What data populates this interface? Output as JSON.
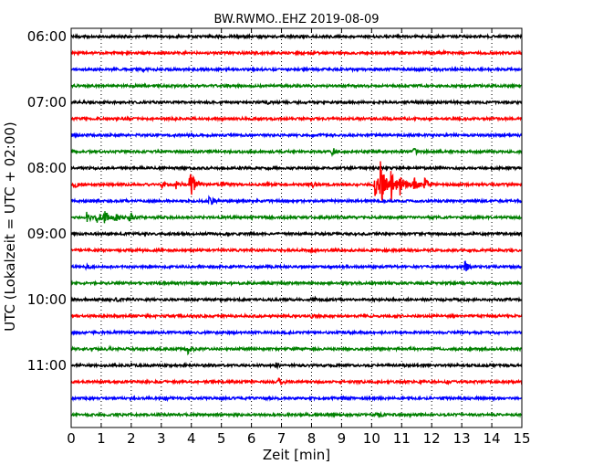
{
  "chart_data": {
    "type": "line",
    "title": "BW.RWMO..EHZ 2019-08-09",
    "xlabel": "Zeit  [min]",
    "ylabel": "UTC (Lokalzeit = UTC + 02:00)",
    "xlim": [
      0,
      15
    ],
    "x_ticks": [
      "0",
      "1",
      "2",
      "3",
      "4",
      "5",
      "6",
      "7",
      "8",
      "9",
      "10",
      "11",
      "12",
      "13",
      "14",
      "15"
    ],
    "y_ticks": [
      "06:00",
      "07:00",
      "08:00",
      "09:00",
      "10:00",
      "11:00"
    ],
    "grid": "vertical dotted",
    "trace_interval_min": 15,
    "traces": [
      {
        "start": "06:00",
        "color": "#000000",
        "events": []
      },
      {
        "start": "06:15",
        "color": "#ff0000",
        "events": [
          {
            "t": 12.4,
            "amp": 1.5
          }
        ]
      },
      {
        "start": "06:30",
        "color": "#0000ff",
        "events": [
          {
            "t": 2.4,
            "amp": 1.5
          },
          {
            "t": 12.2,
            "amp": 2
          }
        ]
      },
      {
        "start": "06:45",
        "color": "#008000",
        "events": []
      },
      {
        "start": "07:00",
        "color": "#000000",
        "events": [
          {
            "t": 6.5,
            "amp": 1.5
          }
        ]
      },
      {
        "start": "07:15",
        "color": "#ff0000",
        "events": []
      },
      {
        "start": "07:30",
        "color": "#0000ff",
        "events": []
      },
      {
        "start": "07:45",
        "color": "#008000",
        "events": [
          {
            "t": 8.7,
            "amp": 4
          },
          {
            "t": 11.4,
            "amp": 3
          }
        ]
      },
      {
        "start": "08:00",
        "color": "#000000",
        "events": []
      },
      {
        "start": "08:15",
        "color": "#ff0000",
        "events": [
          {
            "t": 0.1,
            "amp": 4
          },
          {
            "t": 3.0,
            "amp": 3
          },
          {
            "t": 3.5,
            "amp": 5
          },
          {
            "t": 3.95,
            "amp": 20
          },
          {
            "t": 5.0,
            "amp": 3
          },
          {
            "t": 6.5,
            "amp": 2
          },
          {
            "t": 8.0,
            "amp": 3
          },
          {
            "t": 10.1,
            "amp": 16
          },
          {
            "t": 10.3,
            "amp": 40
          },
          {
            "t": 10.65,
            "amp": 22
          },
          {
            "t": 10.95,
            "amp": 16
          },
          {
            "t": 11.4,
            "amp": 12
          },
          {
            "t": 11.75,
            "amp": 7
          }
        ]
      },
      {
        "start": "08:30",
        "color": "#0000ff",
        "events": [
          {
            "t": 4.6,
            "amp": 6
          }
        ]
      },
      {
        "start": "08:45",
        "color": "#008000",
        "events": [
          {
            "t": 0.5,
            "amp": 8
          },
          {
            "t": 0.85,
            "amp": 6
          },
          {
            "t": 1.1,
            "amp": 7
          },
          {
            "t": 1.45,
            "amp": 6
          },
          {
            "t": 1.95,
            "amp": 7
          }
        ]
      },
      {
        "start": "09:00",
        "color": "#000000",
        "events": []
      },
      {
        "start": "09:15",
        "color": "#ff0000",
        "events": [
          {
            "t": 8.0,
            "amp": 2
          }
        ]
      },
      {
        "start": "09:30",
        "color": "#0000ff",
        "events": [
          {
            "t": 0.5,
            "amp": 2
          },
          {
            "t": 13.1,
            "amp": 6
          }
        ]
      },
      {
        "start": "09:45",
        "color": "#008000",
        "events": []
      },
      {
        "start": "10:00",
        "color": "#000000",
        "events": [
          {
            "t": 1.5,
            "amp": 1.5
          },
          {
            "t": 8.1,
            "amp": 1.5
          }
        ]
      },
      {
        "start": "10:15",
        "color": "#ff0000",
        "events": [
          {
            "t": 8.0,
            "amp": 1.5
          }
        ]
      },
      {
        "start": "10:30",
        "color": "#0000ff",
        "events": []
      },
      {
        "start": "10:45",
        "color": "#008000",
        "events": [
          {
            "t": 1.2,
            "amp": 1.5
          },
          {
            "t": 3.85,
            "amp": 6
          }
        ]
      },
      {
        "start": "11:00",
        "color": "#000000",
        "events": [
          {
            "t": 6.8,
            "amp": 2
          }
        ]
      },
      {
        "start": "11:15",
        "color": "#ff0000",
        "events": [
          {
            "t": 6.9,
            "amp": 5
          },
          {
            "t": 12.5,
            "amp": 2
          }
        ]
      },
      {
        "start": "11:30",
        "color": "#0000ff",
        "events": [
          {
            "t": 3.1,
            "amp": 2
          },
          {
            "t": 9.0,
            "amp": 1.5
          }
        ]
      },
      {
        "start": "11:45",
        "color": "#008000",
        "events": [
          {
            "t": 10.2,
            "amp": 3
          }
        ]
      }
    ]
  }
}
